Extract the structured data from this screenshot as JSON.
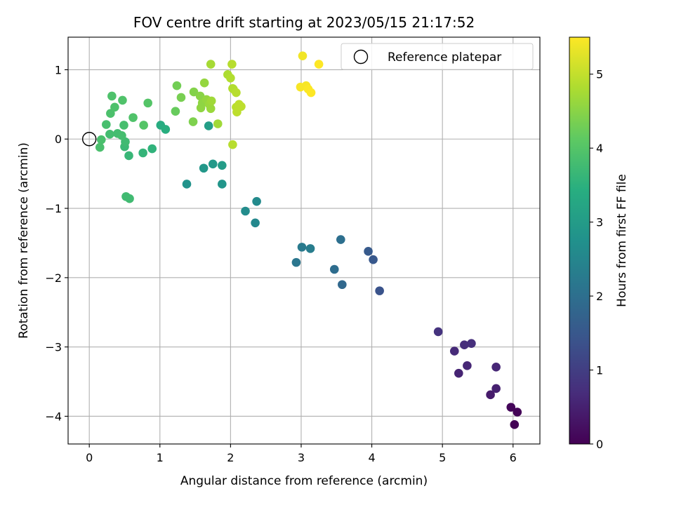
{
  "chart_data": {
    "type": "scatter",
    "title": "FOV centre drift starting at 2023/05/15 21:17:52",
    "xlabel": "Angular distance from reference (arcmin)",
    "ylabel": "Rotation from reference (arcmin)",
    "xlim": [
      -0.3,
      6.38
    ],
    "ylim": [
      -4.4,
      1.47
    ],
    "x_ticks": [
      0,
      1,
      2,
      3,
      4,
      5,
      6
    ],
    "y_ticks": [
      -4,
      -3,
      -2,
      -1,
      0,
      1
    ],
    "x_tick_labels": [
      "0",
      "1",
      "2",
      "3",
      "4",
      "5",
      "6"
    ],
    "y_tick_labels": [
      "−4",
      "−3",
      "−2",
      "−1",
      "0",
      "1"
    ],
    "grid": true,
    "legend": {
      "label": "Reference platepar",
      "placement": "top-right"
    },
    "reference_point": {
      "x": 0,
      "y": 0
    },
    "colorbar": {
      "label": "Hours from first FF file",
      "range": [
        0,
        5.5
      ],
      "ticks": [
        0,
        1,
        2,
        3,
        4,
        5
      ],
      "tick_labels": [
        "0",
        "1",
        "2",
        "3",
        "4",
        "5"
      ],
      "colormap": "viridis"
    },
    "points": [
      {
        "x": 6.02,
        "y": -4.12,
        "c": 0.02
      },
      {
        "x": 6.06,
        "y": -3.94,
        "c": 0.05
      },
      {
        "x": 5.97,
        "y": -3.87,
        "c": 0.08
      },
      {
        "x": 5.68,
        "y": -3.69,
        "c": 0.4
      },
      {
        "x": 5.76,
        "y": -3.6,
        "c": 0.5
      },
      {
        "x": 5.23,
        "y": -3.38,
        "c": 0.55
      },
      {
        "x": 5.35,
        "y": -3.27,
        "c": 0.6
      },
      {
        "x": 5.76,
        "y": -3.29,
        "c": 0.6
      },
      {
        "x": 5.17,
        "y": -3.06,
        "c": 0.65
      },
      {
        "x": 5.31,
        "y": -2.97,
        "c": 0.7
      },
      {
        "x": 5.41,
        "y": -2.95,
        "c": 0.72
      },
      {
        "x": 4.94,
        "y": -2.78,
        "c": 0.8
      },
      {
        "x": 4.11,
        "y": -2.19,
        "c": 1.4
      },
      {
        "x": 4.02,
        "y": -1.74,
        "c": 1.5
      },
      {
        "x": 3.95,
        "y": -1.62,
        "c": 1.55
      },
      {
        "x": 3.58,
        "y": -2.1,
        "c": 1.85
      },
      {
        "x": 3.47,
        "y": -1.88,
        "c": 1.95
      },
      {
        "x": 3.56,
        "y": -1.45,
        "c": 2.0
      },
      {
        "x": 2.93,
        "y": -1.78,
        "c": 2.15
      },
      {
        "x": 3.01,
        "y": -1.56,
        "c": 2.25
      },
      {
        "x": 3.13,
        "y": -1.58,
        "c": 2.3
      },
      {
        "x": 2.35,
        "y": -1.21,
        "c": 2.55
      },
      {
        "x": 2.37,
        "y": -0.9,
        "c": 2.6
      },
      {
        "x": 2.21,
        "y": -1.04,
        "c": 2.65
      },
      {
        "x": 1.38,
        "y": -0.65,
        "c": 2.8
      },
      {
        "x": 1.88,
        "y": -0.65,
        "c": 2.85
      },
      {
        "x": 1.62,
        "y": -0.42,
        "c": 2.9
      },
      {
        "x": 1.75,
        "y": -0.36,
        "c": 2.95
      },
      {
        "x": 1.88,
        "y": -0.38,
        "c": 3.0
      },
      {
        "x": 1.69,
        "y": 0.19,
        "c": 3.05
      },
      {
        "x": 1.01,
        "y": 0.2,
        "c": 3.4
      },
      {
        "x": 1.08,
        "y": 0.14,
        "c": 3.45
      },
      {
        "x": 0.89,
        "y": -0.14,
        "c": 3.55
      },
      {
        "x": 0.76,
        "y": -0.2,
        "c": 3.6
      },
      {
        "x": 0.56,
        "y": -0.24,
        "c": 3.65
      },
      {
        "x": 0.5,
        "y": -0.11,
        "c": 3.7
      },
      {
        "x": 0.51,
        "y": -0.04,
        "c": 3.75
      },
      {
        "x": 0.52,
        "y": -0.83,
        "c": 3.75
      },
      {
        "x": 0.57,
        "y": -0.86,
        "c": 3.75
      },
      {
        "x": 0.29,
        "y": 0.07,
        "c": 3.8
      },
      {
        "x": 0.4,
        "y": 0.08,
        "c": 3.8
      },
      {
        "x": 0.46,
        "y": 0.05,
        "c": 3.82
      },
      {
        "x": 0.49,
        "y": 0.2,
        "c": 3.85
      },
      {
        "x": 0.24,
        "y": 0.21,
        "c": 3.85
      },
      {
        "x": 0.17,
        "y": -0.01,
        "c": 3.88
      },
      {
        "x": 0.15,
        "y": -0.12,
        "c": 3.88
      },
      {
        "x": 0.3,
        "y": 0.37,
        "c": 3.9
      },
      {
        "x": 0.36,
        "y": 0.46,
        "c": 3.92
      },
      {
        "x": 0.32,
        "y": 0.62,
        "c": 3.92
      },
      {
        "x": 0.47,
        "y": 0.56,
        "c": 3.95
      },
      {
        "x": 0.62,
        "y": 0.31,
        "c": 3.95
      },
      {
        "x": 0.77,
        "y": 0.2,
        "c": 4.0
      },
      {
        "x": 0.83,
        "y": 0.52,
        "c": 4.0
      },
      {
        "x": 1.22,
        "y": 0.4,
        "c": 4.2
      },
      {
        "x": 1.24,
        "y": 0.77,
        "c": 4.3
      },
      {
        "x": 1.3,
        "y": 0.6,
        "c": 4.35
      },
      {
        "x": 1.47,
        "y": 0.25,
        "c": 4.4
      },
      {
        "x": 1.48,
        "y": 0.68,
        "c": 4.45
      },
      {
        "x": 1.57,
        "y": 0.62,
        "c": 4.5
      },
      {
        "x": 1.58,
        "y": 0.45,
        "c": 4.55
      },
      {
        "x": 1.6,
        "y": 0.52,
        "c": 4.55
      },
      {
        "x": 1.63,
        "y": 0.81,
        "c": 4.6
      },
      {
        "x": 1.66,
        "y": 0.57,
        "c": 4.6
      },
      {
        "x": 1.7,
        "y": 0.5,
        "c": 4.65
      },
      {
        "x": 1.72,
        "y": 0.44,
        "c": 4.65
      },
      {
        "x": 1.73,
        "y": 0.55,
        "c": 4.7
      },
      {
        "x": 1.72,
        "y": 1.08,
        "c": 4.75
      },
      {
        "x": 1.82,
        "y": 0.22,
        "c": 4.7
      },
      {
        "x": 1.96,
        "y": 0.93,
        "c": 4.8
      },
      {
        "x": 2.0,
        "y": 0.88,
        "c": 4.85
      },
      {
        "x": 2.02,
        "y": 1.08,
        "c": 4.9
      },
      {
        "x": 2.03,
        "y": 0.73,
        "c": 4.85
      },
      {
        "x": 2.04,
        "y": 0.72,
        "c": 4.85
      },
      {
        "x": 2.03,
        "y": -0.08,
        "c": 4.9
      },
      {
        "x": 2.08,
        "y": 0.67,
        "c": 4.9
      },
      {
        "x": 2.08,
        "y": 0.46,
        "c": 4.92
      },
      {
        "x": 2.09,
        "y": 0.39,
        "c": 4.95
      },
      {
        "x": 2.12,
        "y": 0.5,
        "c": 4.95
      },
      {
        "x": 2.15,
        "y": 0.47,
        "c": 4.95
      },
      {
        "x": 3.02,
        "y": 1.2,
        "c": 5.4
      },
      {
        "x": 2.99,
        "y": 0.75,
        "c": 5.45
      },
      {
        "x": 3.07,
        "y": 0.77,
        "c": 5.45
      },
      {
        "x": 3.1,
        "y": 0.72,
        "c": 5.48
      },
      {
        "x": 3.14,
        "y": 0.67,
        "c": 5.5
      },
      {
        "x": 3.25,
        "y": 1.08,
        "c": 5.5
      }
    ]
  }
}
